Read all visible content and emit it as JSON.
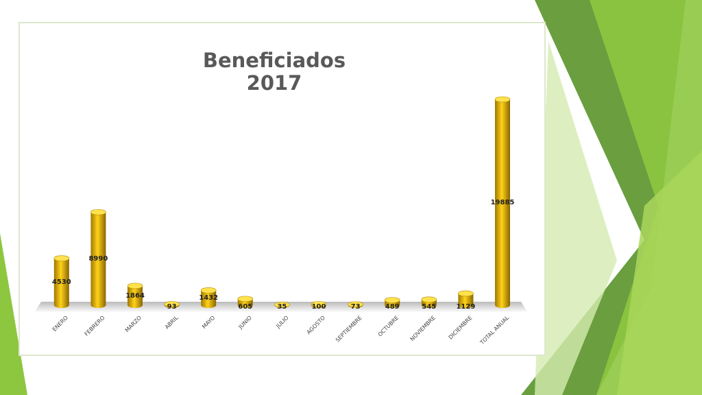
{
  "chart_data": {
    "type": "bar",
    "title": "Beneficiados 2017",
    "categories": [
      "ENERO",
      "FEBRERO",
      "MARZO",
      "ABRIL",
      "MAYO",
      "JUNIO",
      "JULIO",
      "AGOSTO",
      "SEPTIEMBRE",
      "OCTUBRE",
      "NOVIEMBRE",
      "DICIEMBRE",
      "TOTAL ANUAL"
    ],
    "values": [
      4530,
      8990,
      1864,
      93,
      1432,
      605,
      35,
      100,
      73,
      489,
      545,
      1129,
      19885
    ],
    "color": "#e6b800"
  }
}
